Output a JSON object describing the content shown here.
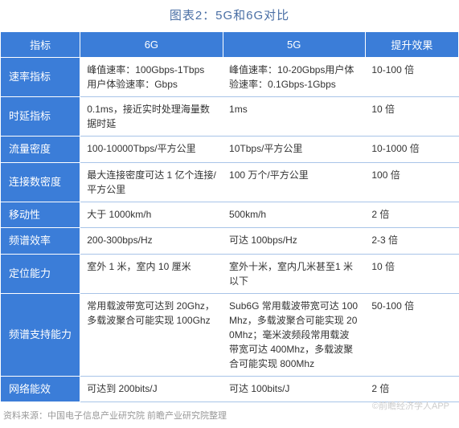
{
  "title": "图表2：5G和6G对比",
  "colors": {
    "header_bg": "#3b7dd8",
    "header_text": "#ffffff",
    "border": "#a8c4e8",
    "title_color": "#4a6fa5",
    "body_text": "#333333",
    "source_text": "#999999"
  },
  "columns": [
    "指标",
    "6G",
    "5G",
    "提升效果"
  ],
  "rows": [
    {
      "indicator": "速率指标",
      "g6": "峰值速率：100Gbps-1Tbps 用户体验速率：Gbps",
      "g5": "峰值速率：10-20Gbps用户体验速率：0.1Gbps-1Gbps",
      "improve": "10-100 倍"
    },
    {
      "indicator": "时延指标",
      "g6": "0.1ms，接近实时处理海量数据时延",
      "g5": "1ms",
      "improve": "10 倍"
    },
    {
      "indicator": "流量密度",
      "g6": "100-10000Tbps/平方公里",
      "g5": "10Tbps/平方公里",
      "improve": "10-1000 倍"
    },
    {
      "indicator": "连接数密度",
      "g6": "最大连接密度可达 1 亿个连接/平方公里",
      "g5": "100 万个/平方公里",
      "improve": "100 倍"
    },
    {
      "indicator": "移动性",
      "g6": "大于 1000km/h",
      "g5": "500km/h",
      "improve": "2 倍"
    },
    {
      "indicator": "频谱效率",
      "g6": "200-300bps/Hz",
      "g5": "可达 100bps/Hz",
      "improve": "2-3 倍"
    },
    {
      "indicator": "定位能力",
      "g6": "室外 1 米，室内 10 厘米",
      "g5": "室外十米，室内几米甚至1 米以下",
      "improve": "10 倍"
    },
    {
      "indicator": "频谱支持能力",
      "g6": "常用载波带宽可达到 20Ghz，多载波聚合可能实现 100Ghz",
      "g5": "Sub6G 常用载波带宽可达 100Mhz，多载波聚合可能实现 200Mhz；毫米波频段常用载波带宽可达 400Mhz，多载波聚合可能实现 800Mhz",
      "improve": "50-100 倍"
    },
    {
      "indicator": "网络能效",
      "g6": "可达到 200bits/J",
      "g5": "可达 100bits/J",
      "improve": "2 倍"
    }
  ],
  "source": "资料来源：中国电子信息产业研究院 前瞻产业研究院整理",
  "watermark": "©前瞻经济学人APP"
}
